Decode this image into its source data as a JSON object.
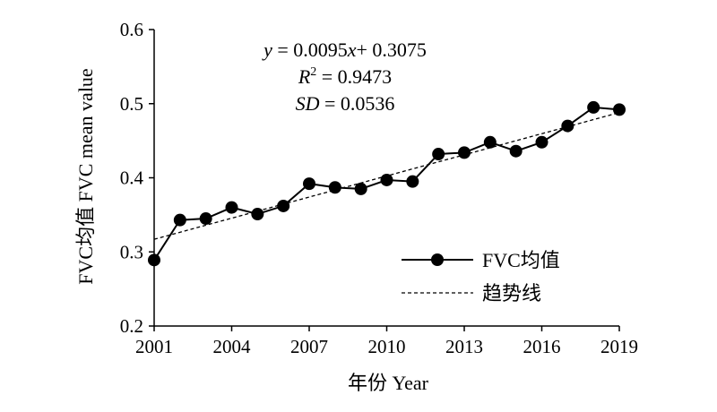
{
  "chart_data": {
    "type": "line",
    "xlabel": "年份 Year",
    "ylabel": "FVC均值 FVC mean value",
    "xlim": [
      2001,
      2019
    ],
    "ylim": [
      0.2,
      0.6
    ],
    "xticks": [
      "2001",
      "2004",
      "2007",
      "2010",
      "2013",
      "2016",
      "2019"
    ],
    "yticks": [
      "0.2",
      "0.3",
      "0.4",
      "0.5",
      "0.6"
    ],
    "grid": false,
    "legend_position": "bottom-right",
    "x": [
      2001,
      2002,
      2003,
      2004,
      2005,
      2006,
      2007,
      2008,
      2009,
      2010,
      2011,
      2012,
      2013,
      2014,
      2015,
      2016,
      2017,
      2018,
      2019
    ],
    "series": [
      {
        "name": "FVC均值",
        "style": "solid-line-with-circle-markers",
        "color": "#000000",
        "values": [
          0.289,
          0.343,
          0.345,
          0.36,
          0.351,
          0.362,
          0.392,
          0.387,
          0.385,
          0.397,
          0.395,
          0.432,
          0.434,
          0.448,
          0.436,
          0.448,
          0.47,
          0.495,
          0.492
        ]
      },
      {
        "name": "趋势线",
        "style": "dashed-line",
        "color": "#000000",
        "slope": 0.0095,
        "intercept": 0.3075
      }
    ],
    "annotation": {
      "equation_y": "y",
      "equation_rest": " = 0.0095",
      "equation_x": "x",
      "equation_tail": "+ 0.3075",
      "r2_label": "R",
      "r2_sup": "2",
      "r2_value": " = 0.9473",
      "sd_label": "SD",
      "sd_value": " = 0.0536"
    }
  }
}
